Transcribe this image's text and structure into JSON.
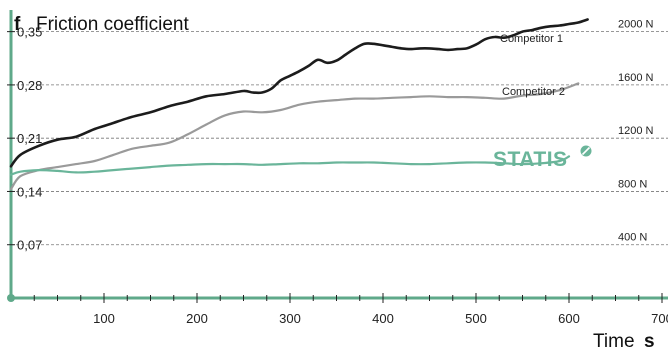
{
  "chart_data": {
    "type": "line",
    "title_letter": "f",
    "title": "Friction coefficient",
    "xlabel": "Time",
    "xlabel_unit": "s",
    "xlim": [
      0,
      700
    ],
    "ylim": [
      0,
      0.385
    ],
    "x_ticks": [
      100,
      200,
      300,
      400,
      500,
      600,
      700
    ],
    "y_ticks": [
      {
        "value": 0.35,
        "label": "0,35"
      },
      {
        "value": 0.28,
        "label": "0,28"
      },
      {
        "value": 0.21,
        "label": "0,21"
      },
      {
        "value": 0.14,
        "label": "0,14"
      },
      {
        "value": 0.07,
        "label": "0,07"
      }
    ],
    "force_levels": [
      {
        "value": 0.35,
        "label": "2000 N"
      },
      {
        "value": 0.28,
        "label": "1600 N"
      },
      {
        "value": 0.21,
        "label": "1200 N"
      },
      {
        "value": 0.14,
        "label": "800 N"
      },
      {
        "value": 0.07,
        "label": "400 N"
      }
    ],
    "grid": "dashed horizontal",
    "colors": {
      "axis": "#5fa98a",
      "statis": "#6ab59a",
      "competitor1": "#1c1c1c",
      "competitor2": "#9a9a9a",
      "grid": "#777777"
    },
    "series": [
      {
        "name": "Competitor 1",
        "color": "#1c1c1c",
        "x": [
          0,
          10,
          30,
          50,
          70,
          90,
          110,
          130,
          150,
          170,
          190,
          210,
          230,
          250,
          260,
          270,
          280,
          290,
          300,
          310,
          320,
          330,
          340,
          350,
          360,
          370,
          380,
          390,
          400,
          410,
          420,
          430,
          440,
          450,
          460,
          470,
          480,
          490,
          500,
          510,
          520,
          530,
          540,
          550,
          560,
          570,
          580,
          590,
          600,
          610,
          620
        ],
        "values": [
          0.173,
          0.188,
          0.2,
          0.208,
          0.212,
          0.222,
          0.23,
          0.238,
          0.244,
          0.252,
          0.258,
          0.265,
          0.268,
          0.272,
          0.27,
          0.27,
          0.275,
          0.286,
          0.292,
          0.298,
          0.305,
          0.313,
          0.309,
          0.312,
          0.32,
          0.328,
          0.334,
          0.334,
          0.332,
          0.33,
          0.328,
          0.327,
          0.328,
          0.328,
          0.327,
          0.326,
          0.327,
          0.328,
          0.333,
          0.34,
          0.343,
          0.342,
          0.345,
          0.35,
          0.352,
          0.355,
          0.357,
          0.358,
          0.36,
          0.362,
          0.366
        ]
      },
      {
        "name": "Competitor 2",
        "color": "#9a9a9a",
        "x": [
          0,
          10,
          30,
          50,
          70,
          90,
          110,
          130,
          150,
          170,
          190,
          210,
          230,
          250,
          270,
          290,
          310,
          330,
          350,
          370,
          390,
          410,
          430,
          450,
          470,
          490,
          510,
          530,
          550,
          570,
          590,
          610
        ],
        "values": [
          0.143,
          0.16,
          0.168,
          0.172,
          0.176,
          0.18,
          0.188,
          0.196,
          0.2,
          0.204,
          0.215,
          0.228,
          0.24,
          0.245,
          0.244,
          0.247,
          0.254,
          0.258,
          0.26,
          0.262,
          0.262,
          0.263,
          0.264,
          0.265,
          0.264,
          0.264,
          0.263,
          0.262,
          0.266,
          0.268,
          0.273,
          0.282
        ]
      },
      {
        "name": "STATIS",
        "color": "#6ab59a",
        "x": [
          0,
          10,
          30,
          50,
          70,
          90,
          110,
          130,
          150,
          170,
          190,
          210,
          230,
          250,
          270,
          290,
          310,
          330,
          350,
          370,
          390,
          410,
          430,
          450,
          470,
          490,
          510,
          530,
          550,
          570,
          590,
          600
        ],
        "values": [
          0.162,
          0.166,
          0.168,
          0.167,
          0.165,
          0.166,
          0.168,
          0.17,
          0.172,
          0.174,
          0.175,
          0.176,
          0.176,
          0.176,
          0.175,
          0.176,
          0.177,
          0.177,
          0.178,
          0.178,
          0.178,
          0.177,
          0.176,
          0.176,
          0.177,
          0.178,
          0.178,
          0.177,
          0.176,
          0.177,
          0.18,
          0.186
        ]
      }
    ]
  }
}
